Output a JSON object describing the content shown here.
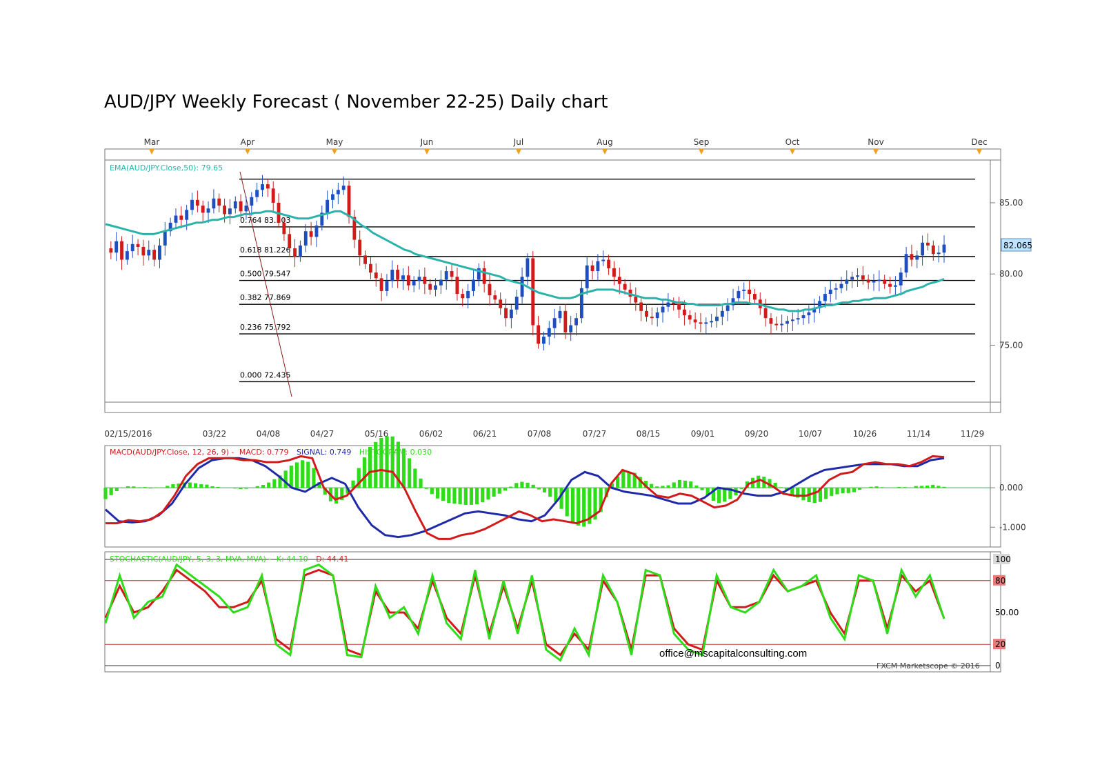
{
  "page": {
    "title": "AUD/JPY Weekly Forecast ( November 22-25) Daily chart"
  },
  "colors": {
    "up": "#1f4fbf",
    "down": "#d11a1a",
    "ema": "#2ab3aa",
    "macd": "#d11a1a",
    "signal": "#1f2aa8",
    "hist": "#2fdc1a",
    "k": "#2fdc1a",
    "d": "#d11a1a",
    "fib": "#000000",
    "price_box": "#bfe3ff"
  },
  "chart_data": [
    {
      "type": "candlestick",
      "month_labels": [
        "Mar",
        "Apr",
        "May",
        "Jun",
        "Jul",
        "Aug",
        "Sep",
        "Oct",
        "Nov",
        "Dec"
      ],
      "date_labels": [
        "02/15/2016",
        "03/22",
        "04/08",
        "04/27",
        "05/16",
        "06/02",
        "06/21",
        "07/08",
        "07/27",
        "08/15",
        "09/01",
        "09/20",
        "10/07",
        "10/26",
        "11/14",
        "11/29"
      ],
      "ema_label": "EMA(AUD/JPY.Close,50): 79.65",
      "current_price": "82.065",
      "y_ticks": [
        "85.00",
        "80.00",
        "75.00"
      ],
      "ylim": [
        71.0,
        88.0
      ],
      "fib_levels": [
        {
          "label": "0.000 72.435",
          "value": 72.435
        },
        {
          "label": "0.236 75.792",
          "value": 75.792
        },
        {
          "label": "0.382 77.869",
          "value": 77.869
        },
        {
          "label": "0.500 79.547",
          "value": 79.547
        },
        {
          "label": "0.618 81.226",
          "value": 81.226
        },
        {
          "label": "0.764 83.303",
          "value": 83.303
        },
        {
          "label": "",
          "value": 86.66
        }
      ],
      "price_path": [
        81.8,
        81.5,
        82.3,
        81.0,
        81.6,
        82.1,
        81.9,
        81.3,
        81.7,
        81.0,
        82.0,
        83.0,
        83.6,
        84.1,
        83.8,
        84.5,
        85.2,
        84.8,
        84.3,
        84.6,
        85.3,
        84.8,
        84.2,
        84.6,
        85.1,
        84.4,
        84.8,
        85.4,
        85.9,
        86.3,
        86.0,
        85.0,
        83.6,
        82.8,
        81.8,
        81.2,
        82.0,
        83.0,
        82.6,
        83.4,
        84.3,
        85.2,
        85.6,
        85.9,
        86.2,
        84.0,
        82.4,
        81.3,
        80.7,
        80.1,
        79.7,
        78.8,
        79.5,
        80.3,
        79.6,
        79.9,
        79.2,
        79.5,
        79.8,
        79.3,
        78.9,
        79.2,
        79.6,
        80.2,
        79.8,
        78.6,
        78.3,
        78.8,
        79.6,
        80.4,
        79.3,
        78.5,
        78.2,
        77.6,
        76.9,
        77.5,
        78.4,
        79.8,
        81.1,
        76.4,
        75.1,
        75.6,
        76.2,
        76.9,
        77.4,
        75.9,
        76.4,
        76.9,
        79.0,
        80.6,
        80.2,
        80.9,
        81.0,
        80.4,
        79.8,
        79.3,
        78.9,
        78.4,
        78.0,
        77.4,
        77.0,
        76.9,
        77.3,
        77.7,
        78.0,
        77.9,
        77.5,
        77.1,
        76.8,
        76.6,
        76.5,
        76.6,
        76.7,
        77.0,
        77.4,
        77.8,
        78.3,
        78.8,
        78.9,
        78.6,
        78.2,
        77.6,
        76.9,
        76.5,
        76.4,
        76.5,
        76.7,
        76.8,
        76.9,
        77.1,
        77.3,
        77.6,
        78.1,
        78.6,
        78.9,
        79.0,
        79.3,
        79.6,
        79.8,
        79.9,
        79.6,
        79.4,
        79.5,
        79.6,
        79.3,
        79.1,
        79.2,
        80.1,
        81.4,
        81.0,
        81.3,
        82.2,
        82.0,
        81.4,
        81.5,
        82.065
      ],
      "ema_path": [
        83.5,
        83.4,
        83.3,
        83.2,
        83.1,
        83.0,
        82.9,
        82.8,
        82.8,
        82.8,
        82.9,
        83.0,
        83.1,
        83.2,
        83.3,
        83.4,
        83.5,
        83.6,
        83.6,
        83.7,
        83.8,
        83.8,
        83.9,
        84.0,
        84.0,
        84.1,
        84.2,
        84.2,
        84.3,
        84.3,
        84.4,
        84.4,
        84.3,
        84.2,
        84.1,
        84.0,
        83.9,
        83.9,
        83.9,
        84.0,
        84.1,
        84.2,
        84.3,
        84.4,
        84.4,
        84.2,
        84.0,
        83.7,
        83.4,
        83.2,
        82.9,
        82.7,
        82.5,
        82.3,
        82.1,
        81.9,
        81.7,
        81.6,
        81.4,
        81.3,
        81.2,
        81.1,
        81.0,
        80.9,
        80.8,
        80.7,
        80.6,
        80.5,
        80.4,
        80.3,
        80.2,
        80.1,
        80.0,
        79.9,
        79.8,
        79.6,
        79.5,
        79.4,
        79.3,
        79.1,
        78.9,
        78.7,
        78.6,
        78.5,
        78.4,
        78.3,
        78.3,
        78.3,
        78.4,
        78.6,
        78.7,
        78.8,
        78.9,
        78.9,
        78.9,
        78.9,
        78.8,
        78.7,
        78.6,
        78.5,
        78.4,
        78.3,
        78.3,
        78.3,
        78.2,
        78.2,
        78.1,
        78.0,
        78.0,
        77.9,
        77.9,
        77.8,
        77.8,
        77.8,
        77.8,
        77.8,
        77.9,
        77.9,
        78.0,
        78.0,
        78.0,
        77.9,
        77.9,
        77.8,
        77.7,
        77.6,
        77.5,
        77.5,
        77.4,
        77.4,
        77.4,
        77.5,
        77.5,
        77.6,
        77.7,
        77.8,
        77.8,
        77.9,
        78.0,
        78.0,
        78.1,
        78.1,
        78.2,
        78.2,
        78.3,
        78.3,
        78.3,
        78.4,
        78.5,
        78.6,
        78.8,
        78.9,
        79.0,
        79.1,
        79.3,
        79.4,
        79.5,
        79.65
      ]
    },
    {
      "type": "line",
      "label": "MACD(AUD/JPY.Close, 12, 26, 9) - MACD: 0.779  SIGNAL: 0.749  HISTOGRAM: 0.030",
      "label_parts": {
        "prefix": "MACD(AUD/JPY.Close, 12, 26, 9) -",
        "macd": "MACD: 0.779",
        "signal": "SIGNAL: 0.749",
        "hist": "HISTOGRAM: 0.030"
      },
      "y_ticks": [
        "0.000",
        "-1.000"
      ],
      "ylim": [
        -1.45,
        1.0
      ],
      "macd": [
        -0.9,
        -0.9,
        -0.82,
        -0.85,
        -0.8,
        -0.6,
        -0.2,
        0.3,
        0.6,
        0.75,
        0.75,
        0.75,
        0.7,
        0.7,
        0.65,
        0.65,
        0.7,
        0.8,
        0.75,
        0.0,
        -0.3,
        -0.2,
        0.1,
        0.4,
        0.45,
        0.4,
        0.0,
        -0.6,
        -1.15,
        -1.3,
        -1.3,
        -1.2,
        -1.15,
        -1.05,
        -0.9,
        -0.75,
        -0.6,
        -0.7,
        -0.85,
        -0.8,
        -0.85,
        -0.9,
        -0.8,
        -0.6,
        0.1,
        0.45,
        0.35,
        0.05,
        -0.2,
        -0.25,
        -0.15,
        -0.2,
        -0.35,
        -0.5,
        -0.45,
        -0.3,
        0.1,
        0.2,
        0.05,
        -0.15,
        -0.2,
        -0.2,
        -0.1,
        0.2,
        0.35,
        0.4,
        0.6,
        0.65,
        0.6,
        0.6,
        0.55,
        0.65,
        0.8,
        0.779
      ],
      "signal": [
        -0.55,
        -0.85,
        -0.88,
        -0.85,
        -0.7,
        -0.4,
        0.1,
        0.5,
        0.7,
        0.75,
        0.75,
        0.7,
        0.55,
        0.3,
        0.0,
        -0.1,
        0.1,
        0.25,
        0.1,
        -0.5,
        -0.95,
        -1.2,
        -1.25,
        -1.2,
        -1.1,
        -0.95,
        -0.8,
        -0.65,
        -0.6,
        -0.65,
        -0.7,
        -0.8,
        -0.85,
        -0.7,
        -0.3,
        0.2,
        0.4,
        0.3,
        0.0,
        -0.1,
        -0.15,
        -0.2,
        -0.3,
        -0.4,
        -0.4,
        -0.25,
        0.0,
        -0.05,
        -0.15,
        -0.2,
        -0.2,
        -0.1,
        0.1,
        0.3,
        0.45,
        0.5,
        0.55,
        0.6,
        0.6,
        0.6,
        0.55,
        0.55,
        0.7,
        0.749
      ]
    },
    {
      "type": "line",
      "label": "STOCHASTIC(AUD/JPY, 5, 3, 3, MVA, MVA) - K: 44.10  D: 44.41",
      "label_parts": {
        "prefix": "STOCHASTIC(AUD/JPY, 5, 3, 3, MVA, MVA) -",
        "k": "K: 44.10",
        "d": "D: 44.41"
      },
      "y_ticks": [
        "100",
        "80",
        "50.00",
        "20",
        "0"
      ],
      "ylim": [
        0,
        100
      ],
      "k": [
        40,
        85,
        45,
        60,
        65,
        95,
        85,
        75,
        65,
        50,
        55,
        85,
        20,
        10,
        90,
        95,
        85,
        10,
        8,
        75,
        45,
        55,
        30,
        85,
        40,
        25,
        90,
        25,
        80,
        30,
        85,
        15,
        5,
        35,
        10,
        85,
        60,
        10,
        90,
        85,
        30,
        15,
        10,
        85,
        55,
        50,
        60,
        90,
        70,
        75,
        85,
        45,
        25,
        85,
        80,
        30,
        90,
        65,
        85,
        44
      ],
      "d": [
        45,
        75,
        50,
        55,
        70,
        90,
        80,
        70,
        55,
        55,
        60,
        80,
        25,
        15,
        85,
        90,
        85,
        15,
        10,
        70,
        50,
        50,
        35,
        80,
        45,
        30,
        85,
        30,
        75,
        35,
        80,
        20,
        10,
        30,
        15,
        80,
        60,
        15,
        85,
        85,
        35,
        20,
        15,
        80,
        55,
        55,
        60,
        85,
        70,
        75,
        80,
        50,
        30,
        80,
        80,
        35,
        85,
        70,
        80,
        44.41
      ]
    }
  ],
  "footer": {
    "email": "office@mscapitalconsulting.com",
    "copyright": "FXCM Marketscope © 2016"
  }
}
